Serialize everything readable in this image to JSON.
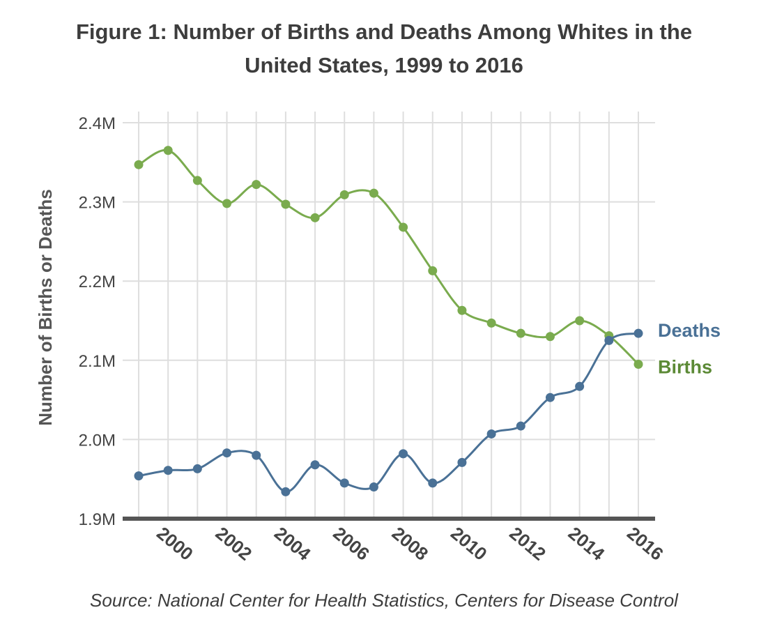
{
  "page": {
    "title_lines": [
      "Figure 1: Number of Births and Deaths Among Whites in the",
      "United States, 1999 to 2016"
    ],
    "source": "Source: National Center for Health Statistics, Centers for Disease Control"
  },
  "colors": {
    "births": "#7aab4e",
    "births_label": "#5c8a36",
    "deaths": "#4a7196",
    "deaths_label": "#4a7196",
    "grid": "#dedede",
    "axis": "#555555",
    "text": "#444444"
  },
  "chart_data": {
    "type": "line",
    "title": "Figure 1: Number of Births and Deaths Among Whites in the United States, 1999 to 2016",
    "xlabel": "",
    "ylabel": "Number of Births or Deaths",
    "x": [
      1999,
      2000,
      2001,
      2002,
      2003,
      2004,
      2005,
      2006,
      2007,
      2008,
      2009,
      2010,
      2011,
      2012,
      2013,
      2014,
      2015,
      2016
    ],
    "xlim": [
      1999,
      2016
    ],
    "ylim": [
      1.9,
      2.4
    ],
    "x_ticks": [
      "2000",
      "2002",
      "2004",
      "2006",
      "2008",
      "2010",
      "2012",
      "2014",
      "2016"
    ],
    "y_ticks": [
      {
        "value": 1.9,
        "label": "1.9M"
      },
      {
        "value": 2.0,
        "label": "2.0M"
      },
      {
        "value": 2.1,
        "label": "2.1M"
      },
      {
        "value": 2.2,
        "label": "2.2M"
      },
      {
        "value": 2.3,
        "label": "2.3M"
      },
      {
        "value": 2.4,
        "label": "2.4M"
      }
    ],
    "units": "millions",
    "grid": true,
    "legend": "end-of-line labels on the right",
    "series": [
      {
        "name": "Births",
        "key": "births",
        "values": [
          2.347,
          2.365,
          2.327,
          2.298,
          2.322,
          2.297,
          2.28,
          2.309,
          2.311,
          2.268,
          2.213,
          2.163,
          2.147,
          2.134,
          2.13,
          2.15,
          2.131,
          2.095
        ]
      },
      {
        "name": "Deaths",
        "key": "deaths",
        "values": [
          1.954,
          1.961,
          1.963,
          1.983,
          1.98,
          1.934,
          1.968,
          1.945,
          1.94,
          1.982,
          1.945,
          1.971,
          2.007,
          2.017,
          2.053,
          2.067,
          2.125,
          2.134
        ]
      }
    ]
  }
}
